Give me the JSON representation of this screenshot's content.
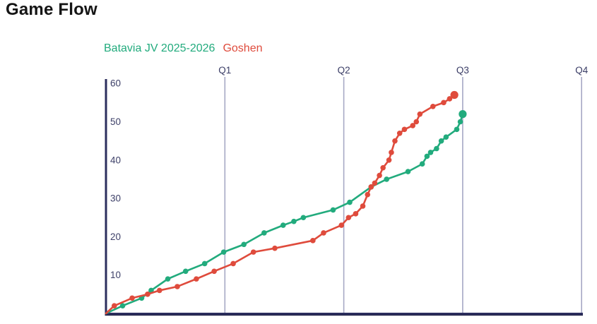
{
  "page": {
    "title": "Game Flow"
  },
  "legend": [
    {
      "label": "Batavia JV 2025-2026",
      "color": "#22ab7d"
    },
    {
      "label": "Goshen",
      "color": "#df4b3c"
    }
  ],
  "colors": {
    "axis": "#2c2e5e",
    "axis_shadow": "#1d1f44",
    "quarter_line": "#a6a8c4",
    "tick_text": "#3e4169",
    "background": "#ffffff"
  },
  "chart_data": {
    "type": "line",
    "title": "Game Flow",
    "xlabel": "",
    "ylabel": "",
    "x_unit": "quarters",
    "xlim": [
      0,
      4
    ],
    "ylim": [
      0,
      60
    ],
    "x_ticks": [
      {
        "label": "Q1",
        "position": 1
      },
      {
        "label": "Q2",
        "position": 2
      },
      {
        "label": "Q3",
        "position": 3
      },
      {
        "label": "Q4",
        "position": 4
      }
    ],
    "y_ticks": [
      10,
      20,
      30,
      40,
      50,
      60
    ],
    "grid": "vertical quarter lines only",
    "legend_position": "top",
    "notes": "Cumulative score vs game time; play stops at the Q3 line; last point of each series drawn as a larger dot",
    "series": [
      {
        "name": "Batavia JV 2025-2026",
        "color": "#22ab7d",
        "score_at_q1": 16,
        "score_at_q2": 29,
        "final_score": 52,
        "points": [
          [
            0.0,
            0
          ],
          [
            0.14,
            2
          ],
          [
            0.3,
            4
          ],
          [
            0.38,
            6
          ],
          [
            0.52,
            9
          ],
          [
            0.67,
            11
          ],
          [
            0.83,
            13
          ],
          [
            0.99,
            16
          ],
          [
            1.16,
            18
          ],
          [
            1.33,
            21
          ],
          [
            1.49,
            23
          ],
          [
            1.58,
            24
          ],
          [
            1.66,
            25
          ],
          [
            1.91,
            27
          ],
          [
            2.05,
            29
          ],
          [
            2.23,
            33
          ],
          [
            2.36,
            35
          ],
          [
            2.54,
            37
          ],
          [
            2.66,
            39
          ],
          [
            2.7,
            41
          ],
          [
            2.73,
            42
          ],
          [
            2.78,
            43
          ],
          [
            2.82,
            45
          ],
          [
            2.86,
            46
          ],
          [
            2.95,
            48
          ],
          [
            2.98,
            50
          ],
          [
            3.0,
            52
          ]
        ]
      },
      {
        "name": "Goshen",
        "color": "#df4b3c",
        "score_at_q1": 12,
        "score_at_q2": 23,
        "final_score": 57,
        "points": [
          [
            0.0,
            0
          ],
          [
            0.07,
            2
          ],
          [
            0.22,
            4
          ],
          [
            0.35,
            5
          ],
          [
            0.45,
            6
          ],
          [
            0.6,
            7
          ],
          [
            0.76,
            9
          ],
          [
            0.91,
            11
          ],
          [
            1.07,
            13
          ],
          [
            1.24,
            16
          ],
          [
            1.42,
            17
          ],
          [
            1.74,
            19
          ],
          [
            1.83,
            21
          ],
          [
            1.98,
            23
          ],
          [
            2.04,
            25
          ],
          [
            2.1,
            26
          ],
          [
            2.16,
            28
          ],
          [
            2.2,
            31
          ],
          [
            2.23,
            33
          ],
          [
            2.26,
            34
          ],
          [
            2.3,
            36
          ],
          [
            2.33,
            38
          ],
          [
            2.38,
            40
          ],
          [
            2.4,
            42
          ],
          [
            2.43,
            45
          ],
          [
            2.47,
            47
          ],
          [
            2.51,
            48
          ],
          [
            2.58,
            49
          ],
          [
            2.61,
            50
          ],
          [
            2.64,
            52
          ],
          [
            2.75,
            54
          ],
          [
            2.84,
            55
          ],
          [
            2.89,
            56
          ],
          [
            2.93,
            57
          ]
        ]
      }
    ]
  }
}
